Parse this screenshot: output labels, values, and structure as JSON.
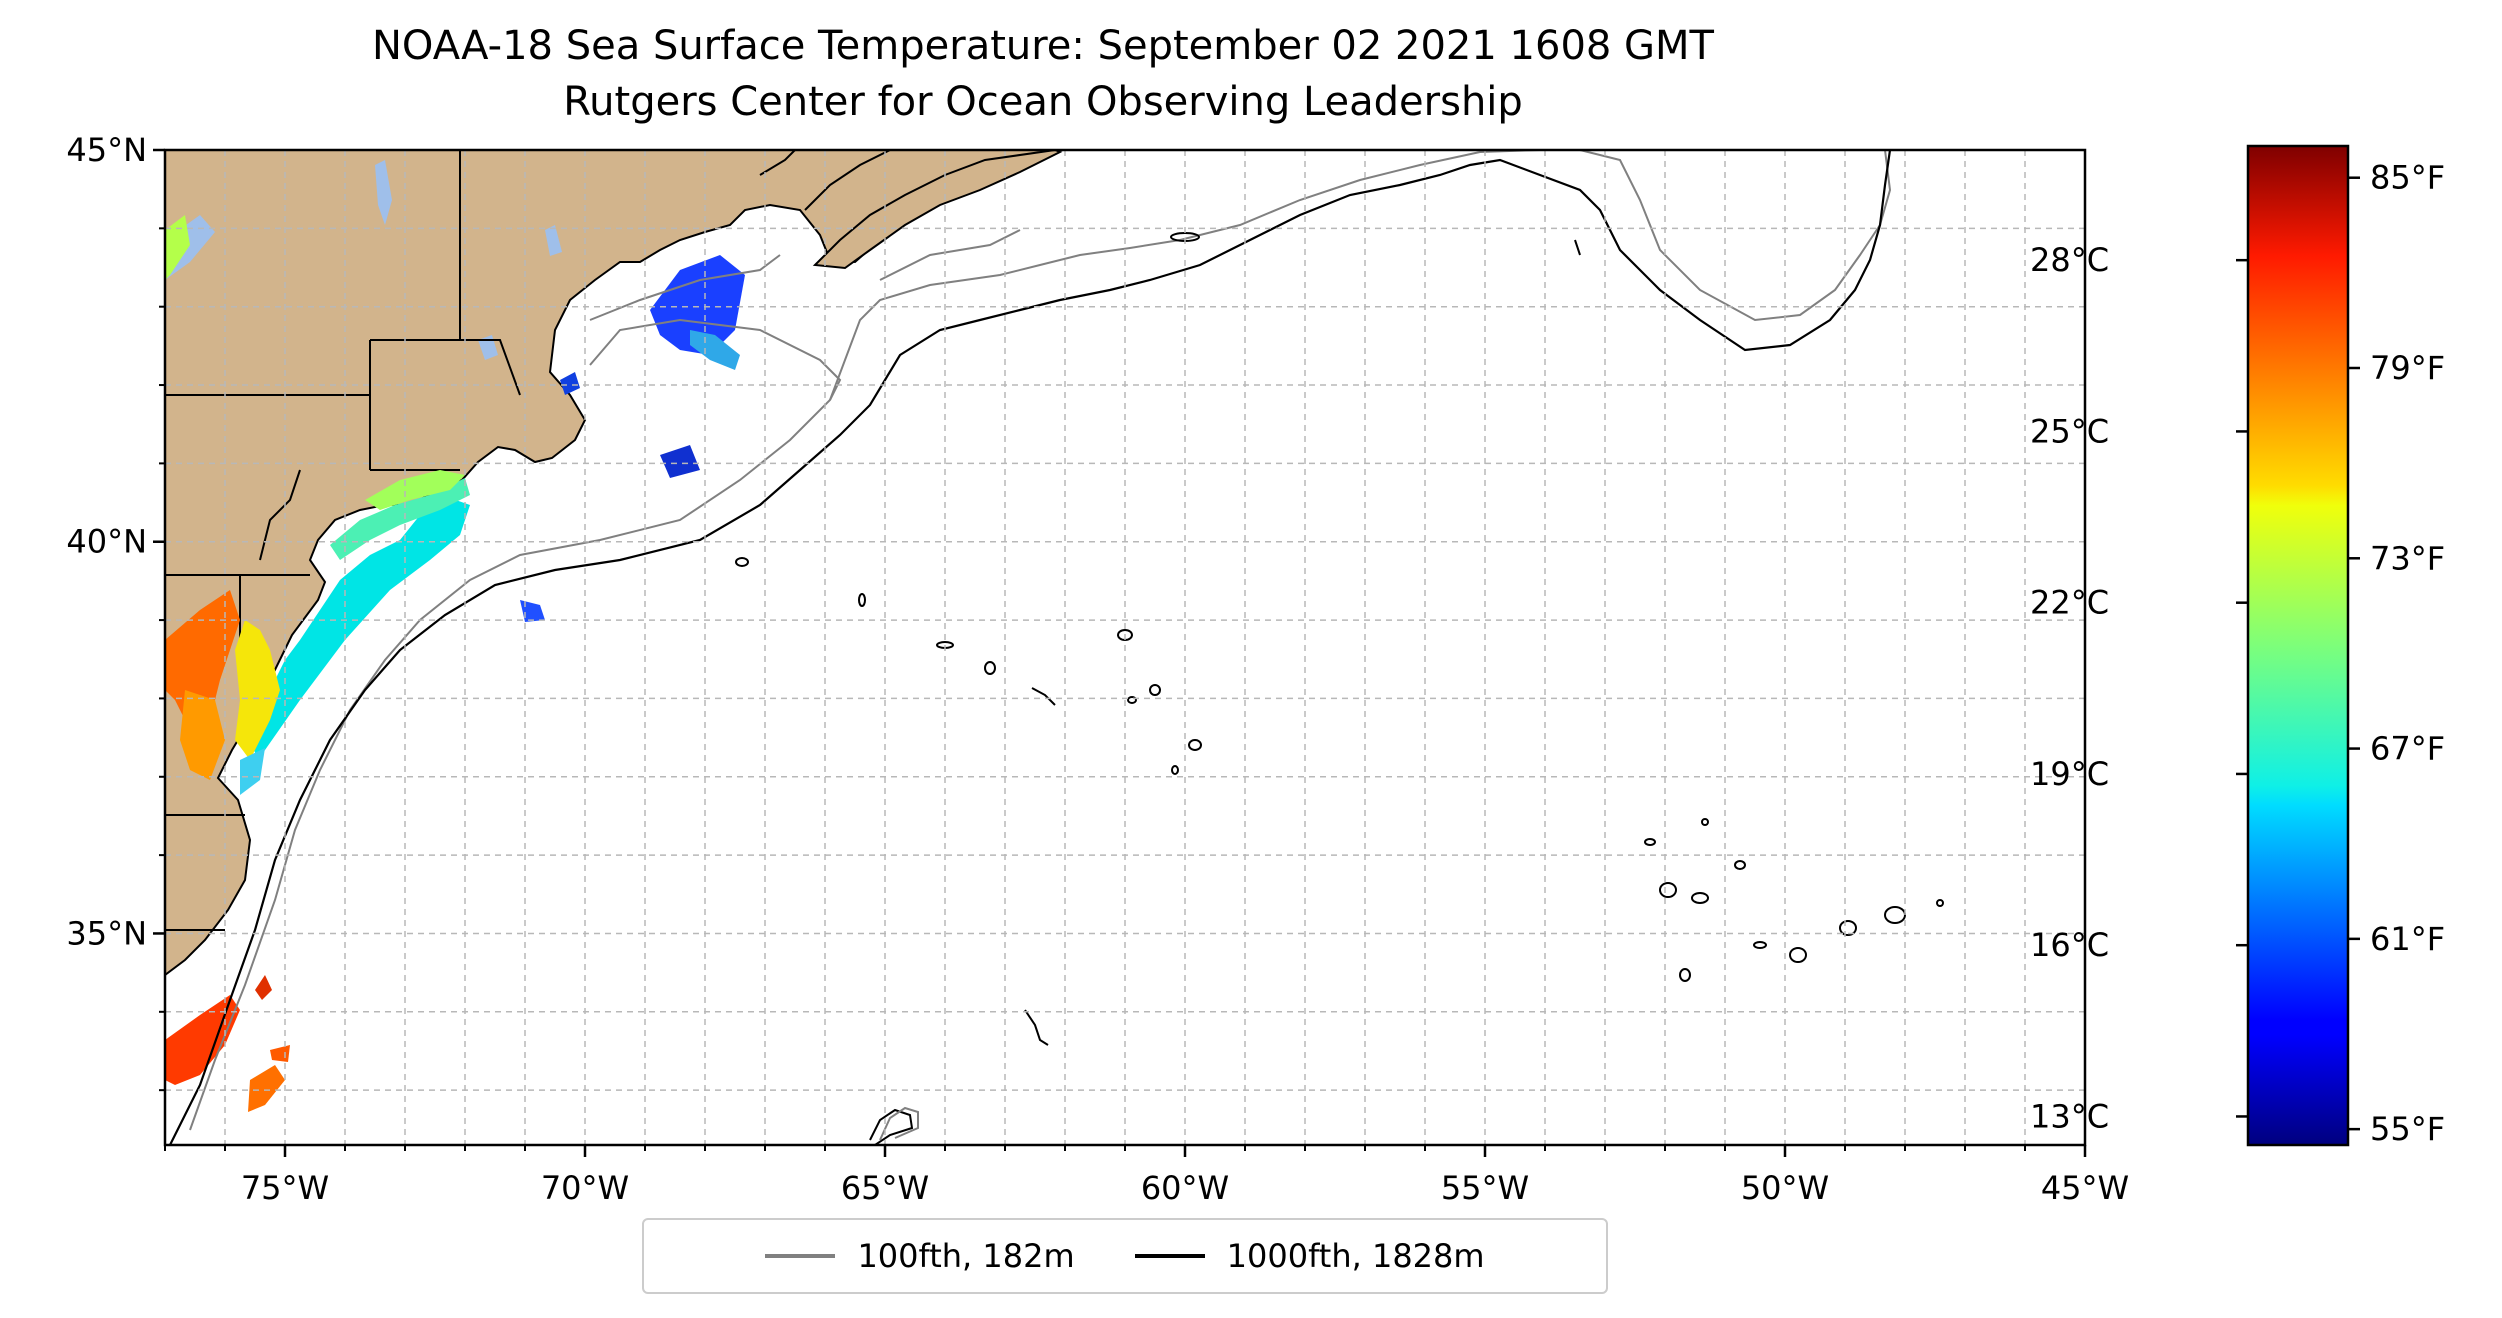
{
  "title": {
    "line1": "NOAA-18 Sea Surface Temperature: September 02 2021 1608 GMT",
    "line2": "Rutgers Center for Ocean Observing Leadership"
  },
  "map": {
    "lon_range": [
      -77,
      -45
    ],
    "lat_range": [
      32.3,
      45
    ],
    "x_ticks": [
      {
        "value": -75,
        "label": "75°W"
      },
      {
        "value": -70,
        "label": "70°W"
      },
      {
        "value": -65,
        "label": "65°W"
      },
      {
        "value": -60,
        "label": "60°W"
      },
      {
        "value": -55,
        "label": "55°W"
      },
      {
        "value": -50,
        "label": "50°W"
      },
      {
        "value": -45,
        "label": "45°W"
      }
    ],
    "y_ticks": [
      {
        "value": 45,
        "label": "45°N"
      },
      {
        "value": 40,
        "label": "40°N"
      },
      {
        "value": 35,
        "label": "35°N"
      }
    ],
    "gridlines": true,
    "land_color": "#d2b48c",
    "inland_water_color": "#9fbfea"
  },
  "colorbar": {
    "colormap": "jet",
    "fahrenheit_range": [
      54.5,
      86
    ],
    "fahrenheit_ticks": [
      {
        "value": 85,
        "label": "85°F"
      },
      {
        "value": 79,
        "label": "79°F"
      },
      {
        "value": 73,
        "label": "73°F"
      },
      {
        "value": 67,
        "label": "67°F"
      },
      {
        "value": 61,
        "label": "61°F"
      },
      {
        "value": 55,
        "label": "55°F"
      }
    ],
    "celsius_ticks": [
      {
        "value": 28,
        "label": "28°C"
      },
      {
        "value": 25,
        "label": "25°C"
      },
      {
        "value": 22,
        "label": "22°C"
      },
      {
        "value": 19,
        "label": "19°C"
      },
      {
        "value": 16,
        "label": "16°C"
      },
      {
        "value": 13,
        "label": "13°C"
      }
    ]
  },
  "legend": {
    "items": [
      {
        "label": "100fth, 182m",
        "color": "#808080"
      },
      {
        "label": "1000fth, 1828m",
        "color": "#000000"
      }
    ]
  }
}
